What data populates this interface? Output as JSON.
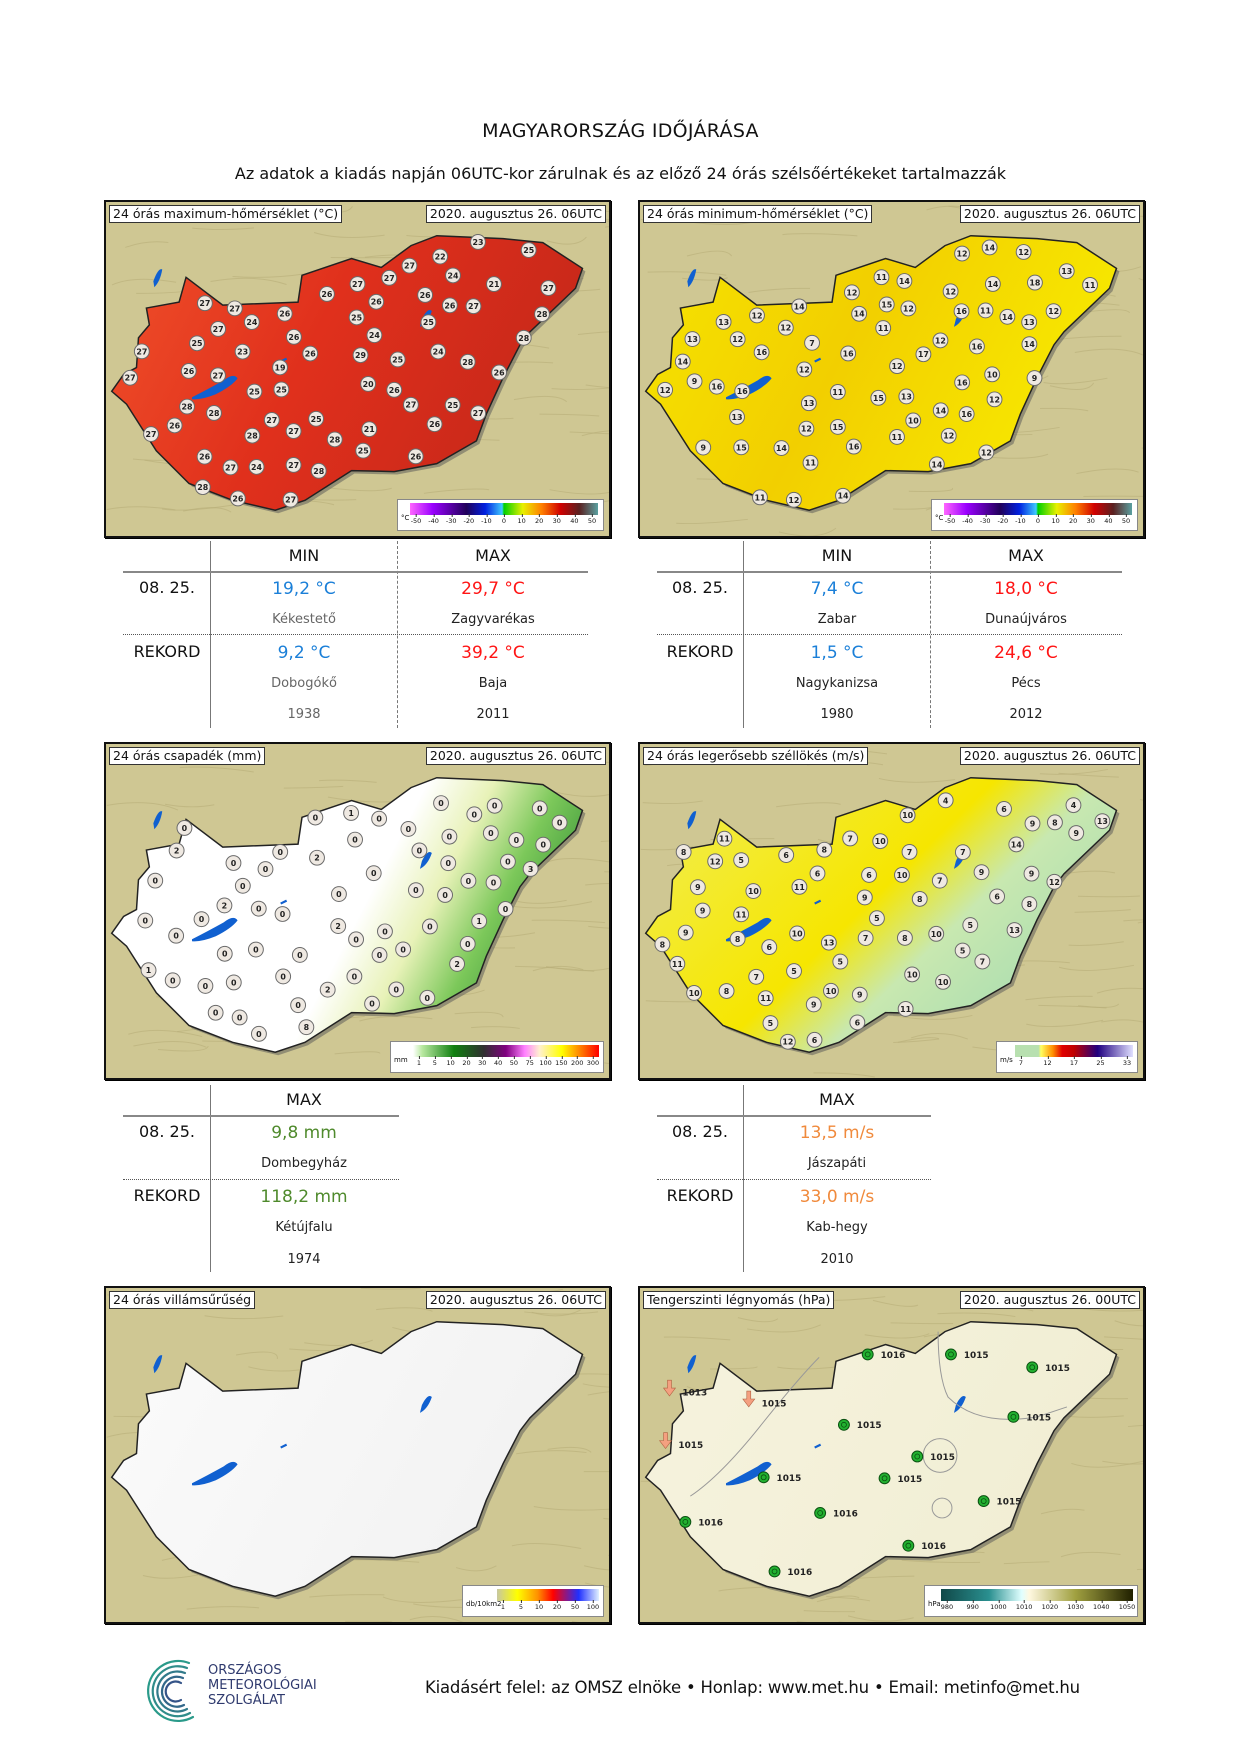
{
  "header": {
    "title": "MAGYARORSZÁG IDŐJÁRÁSA",
    "subtitle": "Az adatok a kiadás napján 06UTC-kor zárulnak és az előző 24 órás szélsőértékeket tartalmazzák"
  },
  "maps": {
    "tmax": {
      "title": "24 órás maximum-hőmérséklet (°C)",
      "date": "2020. augusztus 26. 06UTC",
      "legend": {
        "unit": "°C",
        "ticks": [
          "-50",
          "-40",
          "-30",
          "-20",
          "-10",
          "0",
          "10",
          "20",
          "30",
          "40",
          "50"
        ]
      },
      "stations": [
        "26",
        "27",
        "23",
        "26",
        "25",
        "27",
        "26",
        "21",
        "27",
        "26",
        "25",
        "24",
        "27",
        "20",
        "19",
        "27",
        "26",
        "25",
        "24",
        "26",
        "21",
        "26",
        "28",
        "27",
        "23",
        "25",
        "29",
        "27",
        "24",
        "26",
        "28",
        "27",
        "25",
        "22",
        "25",
        "26",
        "27",
        "28",
        "28",
        "27",
        "25",
        "24",
        "26",
        "27",
        "25",
        "27",
        "28",
        "26",
        "25",
        "27",
        "27",
        "28",
        "27",
        "26",
        "26",
        "27",
        "28",
        "27",
        "28",
        "28",
        "25",
        "27",
        "26",
        "24",
        "26",
        "27"
      ]
    },
    "tmin": {
      "title": "24 órás minimum-hőmérséklet (°C)",
      "date": "2020. augusztus 26. 06UTC",
      "legend": {
        "unit": "°C",
        "ticks": [
          "-50",
          "-40",
          "-30",
          "-20",
          "-10",
          "0",
          "10",
          "20",
          "30",
          "40",
          "50"
        ]
      },
      "stations": [
        "12",
        "14",
        "12",
        "13",
        "12",
        "14",
        "12",
        "9",
        "7",
        "14",
        "12",
        "14",
        "15",
        "16",
        "14",
        "13",
        "12",
        "16",
        "11",
        "12",
        "14",
        "13",
        "16",
        "14",
        "16",
        "13",
        "11",
        "11",
        "12",
        "16",
        "14",
        "14",
        "12",
        "13",
        "12",
        "16",
        "10",
        "12",
        "12",
        "9",
        "14",
        "15",
        "16",
        "11",
        "15",
        "14",
        "14",
        "16",
        "12",
        "12",
        "12",
        "11",
        "17",
        "12",
        "18",
        "13",
        "15",
        "13",
        "16",
        "12",
        "11",
        "9",
        "11",
        "10",
        "12",
        "11"
      ]
    },
    "prec": {
      "title": "24 órás csapadék (mm)",
      "date": "2020. augusztus 26. 06UTC",
      "legend": {
        "unit": "mm",
        "ticks": [
          "1",
          "5",
          "10",
          "20",
          "30",
          "40",
          "50",
          "75",
          "100",
          "150",
          "200",
          "300"
        ]
      },
      "stations": [
        "0",
        "0",
        "0",
        "0",
        "0",
        "0",
        "0",
        "0",
        "1",
        "0",
        "0",
        "0",
        "0",
        "0",
        "0",
        "0",
        "0",
        "0",
        "0",
        "0",
        "0",
        "0",
        "1",
        "0",
        "0",
        "0",
        "0",
        "0",
        "0",
        "0",
        "0",
        "0",
        "2",
        "0",
        "0",
        "0",
        "0",
        "0",
        "0",
        "0",
        "0",
        "2",
        "2",
        "3",
        "0",
        "0",
        "0",
        "0",
        "0",
        "0",
        "0",
        "0",
        "2",
        "0",
        "2",
        "0",
        "0",
        "0",
        "0",
        "8",
        "1",
        "2",
        "0",
        "0",
        "0",
        "0"
      ]
    },
    "wind": {
      "title": "24 órás legerősebb széllökés (m/s)",
      "date": "2020. augusztus 26. 06UTC",
      "legend": {
        "unit": "m/s",
        "ticks": [
          "7",
          "12",
          "17",
          "25",
          "33"
        ]
      },
      "stations": [
        "7",
        "6",
        "4",
        "8",
        "7",
        "6",
        "5",
        "5",
        "7",
        "4",
        "10",
        "9",
        "7",
        "11",
        "9",
        "8",
        "10",
        "6",
        "5",
        "5",
        "9",
        "10",
        "10",
        "8",
        "9",
        "13",
        "11",
        "12",
        "10",
        "14",
        "8",
        "5",
        "5",
        "6",
        "10",
        "9",
        "11",
        "13",
        "12",
        "7",
        "6",
        "9",
        "8",
        "10",
        "9",
        "13",
        "11",
        "8",
        "6",
        "5",
        "6",
        "9",
        "10",
        "12",
        "11",
        "8",
        "7",
        "10",
        "8",
        "9",
        "9",
        "11",
        "10",
        "8",
        "7",
        "6"
      ]
    },
    "light": {
      "title": "24 órás villámsűrűség",
      "date": "2020. augusztus 26. 06UTC",
      "legend": {
        "unit": "db/10km2",
        "ticks": [
          "1",
          "5",
          "10",
          "20",
          "50",
          "100"
        ]
      }
    },
    "pres": {
      "title": "Tengerszinti légnyomás (hPa)",
      "date": "2020. augusztus 26. 00UTC",
      "legend": {
        "unit": "hPa",
        "ticks": [
          "980",
          "990",
          "1000",
          "1010",
          "1020",
          "1030",
          "1040",
          "1050"
        ]
      },
      "stations": [
        {
          "value": "1016",
          "type": "calm"
        },
        {
          "value": "1015",
          "type": "calm"
        },
        {
          "value": "1015",
          "type": "calm"
        },
        {
          "value": "1013",
          "type": "wind"
        },
        {
          "value": "1015",
          "type": "wind"
        },
        {
          "value": "1015",
          "type": "calm"
        },
        {
          "value": "1015",
          "type": "wind"
        },
        {
          "value": "1015",
          "type": "calm"
        },
        {
          "value": "1015",
          "type": "calm"
        },
        {
          "value": "1015",
          "type": "calm"
        },
        {
          "value": "1015",
          "type": "calm"
        },
        {
          "value": "1015",
          "type": "calm"
        },
        {
          "value": "1016",
          "type": "calm"
        },
        {
          "value": "1016",
          "type": "calm"
        },
        {
          "value": "1016",
          "type": "calm"
        },
        {
          "value": "1016",
          "type": "calm"
        }
      ]
    }
  },
  "tables": {
    "tmax": {
      "col_min": "MIN",
      "col_max": "MAX",
      "day_label": "08. 25.",
      "record_label": "REKORD",
      "day_min": "19,2 °C",
      "day_min_place": "Kékestető",
      "day_max": "29,7 °C",
      "day_max_place": "Zagyvarékas",
      "rec_min": "9,2 °C",
      "rec_min_place": "Dobogókő",
      "rec_min_year": "1938",
      "rec_max": "39,2 °C",
      "rec_max_place": "Baja",
      "rec_max_year": "2011"
    },
    "tmin": {
      "col_min": "MIN",
      "col_max": "MAX",
      "day_label": "08. 25.",
      "record_label": "REKORD",
      "day_min": "7,4 °C",
      "day_min_place": "Zabar",
      "day_max": "18,0 °C",
      "day_max_place": "Dunaújváros",
      "rec_min": "1,5 °C",
      "rec_min_place": "Nagykanizsa",
      "rec_min_year": "1980",
      "rec_max": "24,6 °C",
      "rec_max_place": "Pécs",
      "rec_max_year": "2012"
    },
    "prec": {
      "col_max": "MAX",
      "day_label": "08. 25.",
      "record_label": "REKORD",
      "day_max": "9,8 mm",
      "day_max_place": "Dombegyház",
      "rec_max": "118,2 mm",
      "rec_max_place": "Kétújfalu",
      "rec_max_year": "1974"
    },
    "wind": {
      "col_max": "MAX",
      "day_label": "08. 25.",
      "record_label": "REKORD",
      "day_max": "13,5 m/s",
      "day_max_place": "Jászapáti",
      "rec_max": "33,0 m/s",
      "rec_max_place": "Kab-hegy",
      "rec_max_year": "2010"
    }
  },
  "footer": {
    "logo_lines": [
      "ORSZÁGOS",
      "METEOROLÓGIAI",
      "SZOLGÁLAT"
    ],
    "text": "Kiadásért felel: az OMSZ elnöke • Honlap: www.met.hu • Email: metinfo@met.hu"
  },
  "colors": {
    "min": "#1a7fd8",
    "max": "#ff1414",
    "precip": "#4f8a2c",
    "wind": "#f08a3c"
  }
}
